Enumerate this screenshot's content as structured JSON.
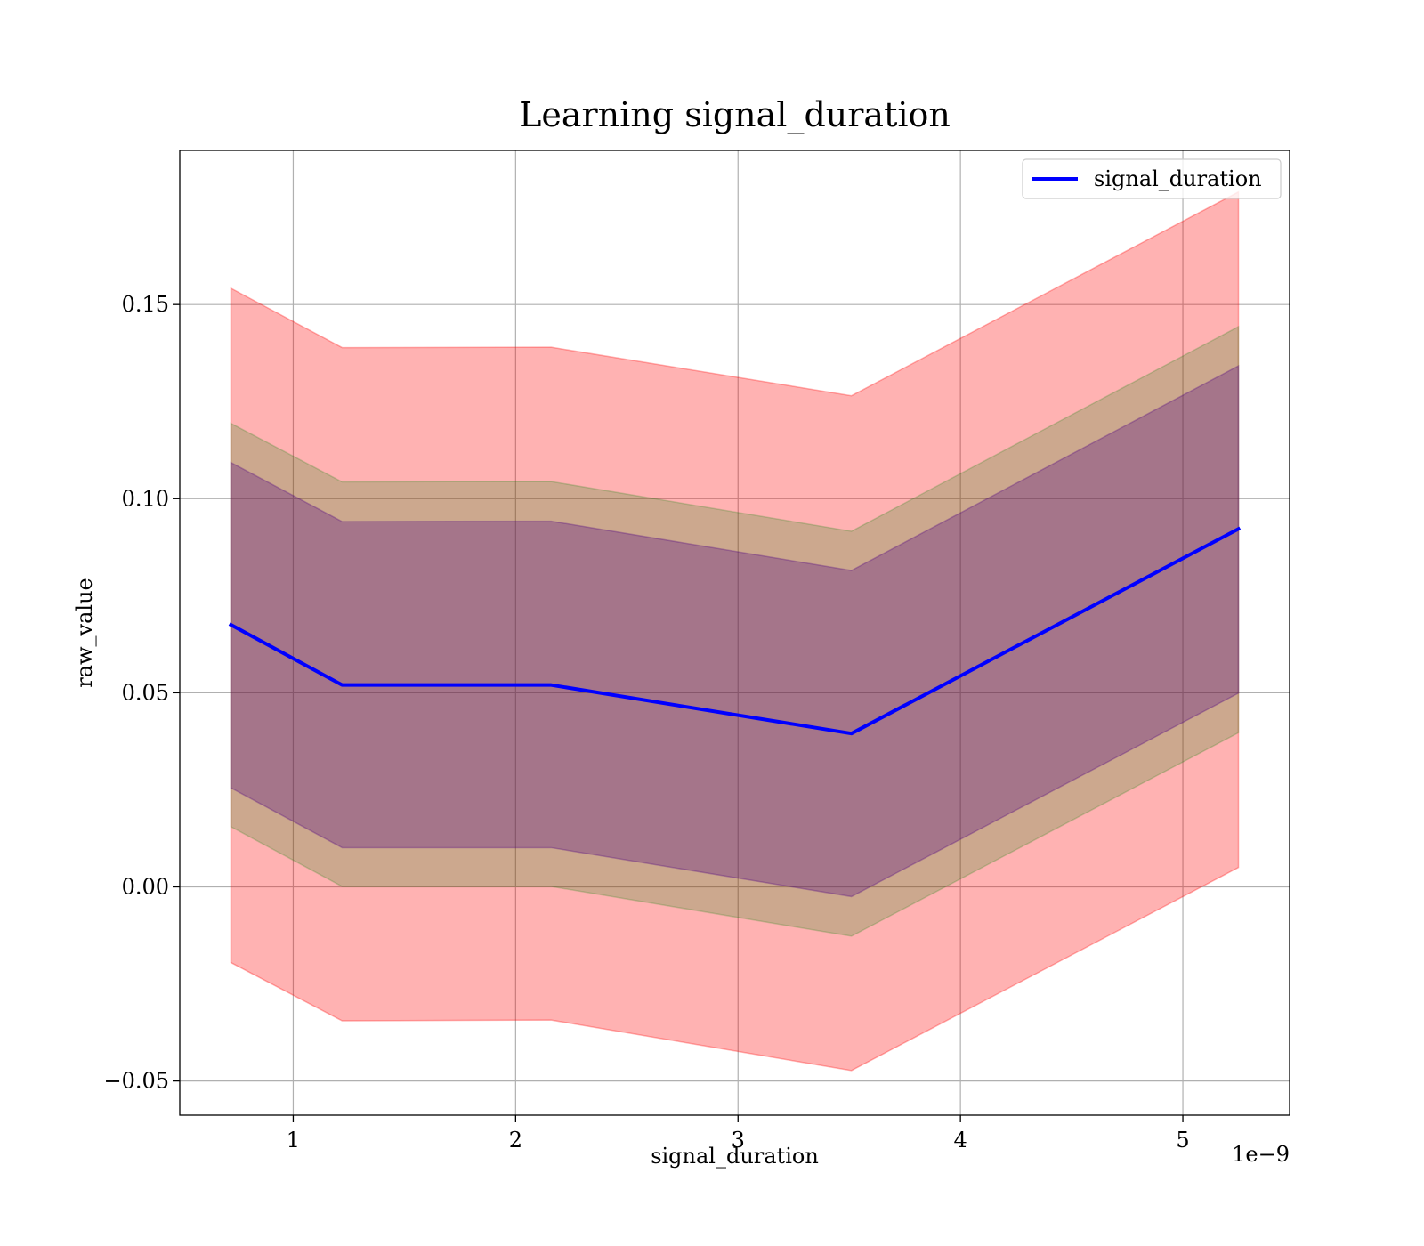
{
  "chart_data": {
    "type": "line",
    "title": "Learning signal_duration",
    "xlabel": "signal_duration",
    "ylabel": "raw_value",
    "x_offset_text": "1e−9",
    "x_ticks": [
      1,
      2,
      3,
      4,
      5
    ],
    "x_tick_labels": [
      "1",
      "2",
      "3",
      "4",
      "5"
    ],
    "y_ticks": [
      -0.05,
      0.0,
      0.05,
      0.1,
      0.15
    ],
    "y_tick_labels": [
      "−0.05",
      "0.00",
      "0.05",
      "0.10",
      "0.15"
    ],
    "xlim": [
      0.49,
      5.48
    ],
    "ylim": [
      -0.0588,
      0.1897
    ],
    "grid": true,
    "legend_position": "top-right",
    "x": [
      0.72,
      1.22,
      2.16,
      3.51,
      5.25
    ],
    "series": [
      {
        "name": "signal_duration",
        "color": "#0000ff",
        "values": [
          0.0675,
          0.052,
          0.052,
          0.0395,
          0.0922
        ]
      }
    ],
    "bands": [
      {
        "color": "#ff0000",
        "opacity": 0.3,
        "lower": [
          -0.0195,
          -0.0345,
          -0.0343,
          -0.0473,
          0.005
        ],
        "upper": [
          0.1542,
          0.1389,
          0.139,
          0.1265,
          0.179
        ]
      },
      {
        "color": "#008000",
        "opacity": 0.2,
        "lower": [
          0.0155,
          0.0001,
          0.0001,
          -0.0127,
          0.0397
        ],
        "upper": [
          0.1194,
          0.1043,
          0.1044,
          0.0916,
          0.1443
        ]
      },
      {
        "color": "#4b0082",
        "opacity": 0.3,
        "lower": [
          0.0255,
          0.0101,
          0.0101,
          -0.0025,
          0.0499
        ],
        "upper": [
          0.1093,
          0.0941,
          0.0942,
          0.0815,
          0.1342
        ]
      }
    ]
  }
}
